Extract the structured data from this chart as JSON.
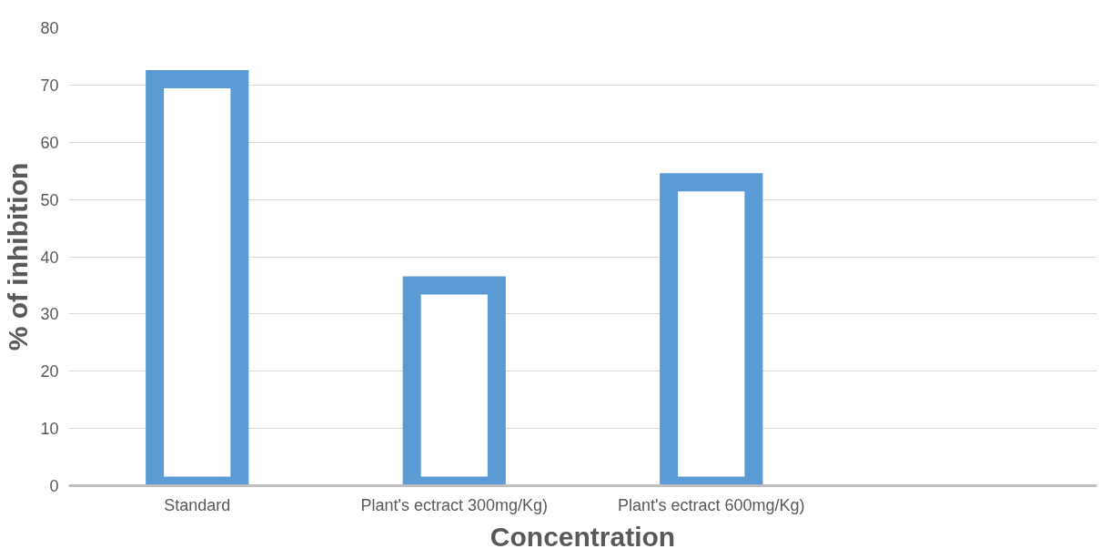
{
  "chart_data": {
    "type": "bar",
    "xlabel": "Concentration",
    "ylabel": "% of inhibition",
    "categories": [
      "Standard",
      "Plant's ectract 300mg/Kg)",
      "Plant's ectract 600mg/Kg)",
      null
    ],
    "values": [
      71,
      35,
      53,
      null
    ],
    "color": "#5b9bd5",
    "ylim": [
      0,
      80
    ],
    "yticks": [
      0,
      10,
      20,
      30,
      40,
      50,
      60,
      70,
      80
    ],
    "grid": "y"
  }
}
